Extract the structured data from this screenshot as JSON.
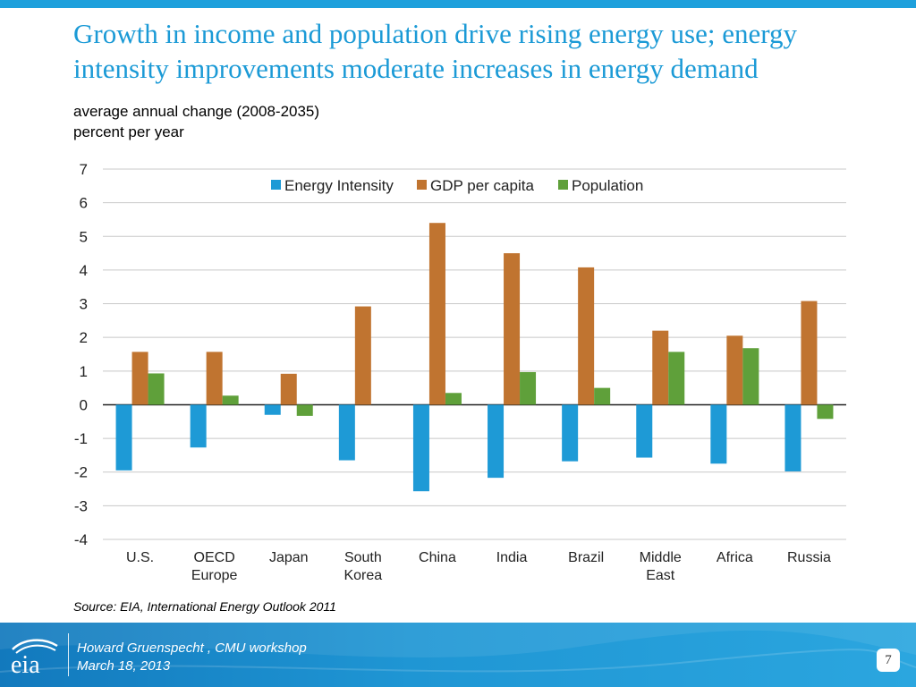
{
  "slide": {
    "title": "Growth in income and population drive rising energy use; energy intensity improvements moderate increases in energy demand",
    "subtitle_line1": "average annual change (2008-2035)",
    "subtitle_line2": "percent per year",
    "source": "Source:  EIA, International Energy Outlook 2011",
    "footer_author": "Howard Gruenspecht , CMU workshop",
    "footer_date": "March 18, 2013",
    "page_number": "7",
    "logo_text": "eia",
    "logo_icon": "eia-logo-icon"
  },
  "chart_data": {
    "type": "bar",
    "categories": [
      "U.S.",
      "OECD\nEurope",
      "Japan",
      "South\nKorea",
      "China",
      "India",
      "Brazil",
      "Middle\nEast",
      "Africa",
      "Russia"
    ],
    "series": [
      {
        "name": "Energy Intensity",
        "color": "#1e9ad6",
        "values": [
          -1.95,
          -1.27,
          -0.3,
          -1.65,
          -2.57,
          -2.17,
          -1.68,
          -1.57,
          -1.75,
          -1.98
        ]
      },
      {
        "name": "GDP per capita",
        "color": "#c07430",
        "values": [
          1.57,
          1.57,
          0.92,
          2.92,
          5.4,
          4.5,
          4.08,
          2.2,
          2.05,
          3.08
        ]
      },
      {
        "name": "Population",
        "color": "#5fa03a",
        "values": [
          0.93,
          0.27,
          -0.33,
          0.0,
          0.35,
          0.97,
          0.5,
          1.57,
          1.68,
          -0.42
        ]
      }
    ],
    "ylim": [
      -4,
      7
    ],
    "yticks": [
      7,
      6,
      5,
      4,
      3,
      2,
      1,
      0,
      -1,
      -2,
      -3,
      -4
    ],
    "grid": true,
    "legend": "top-center",
    "xlabel": "",
    "ylabel": ""
  }
}
